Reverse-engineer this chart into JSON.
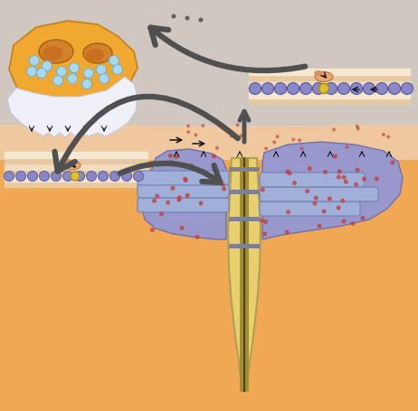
{
  "bg_top_color": "#d0c8c0",
  "bg_bottom_color": "#f0a855",
  "skin_color": "#f0c8a0",
  "neuron_body_color": "#f0a830",
  "neuron_nucleus_color": "#d4822a",
  "vesicle_color": "#a8d8f0",
  "muscle_cell_color": "#9090c8",
  "axon_color": "#e8d070",
  "axon_border": "#b0a050",
  "arrow_gray": "#505050",
  "dot_color": "#c04040",
  "figsize": [
    4.62,
    4.55
  ],
  "dpi": 100
}
